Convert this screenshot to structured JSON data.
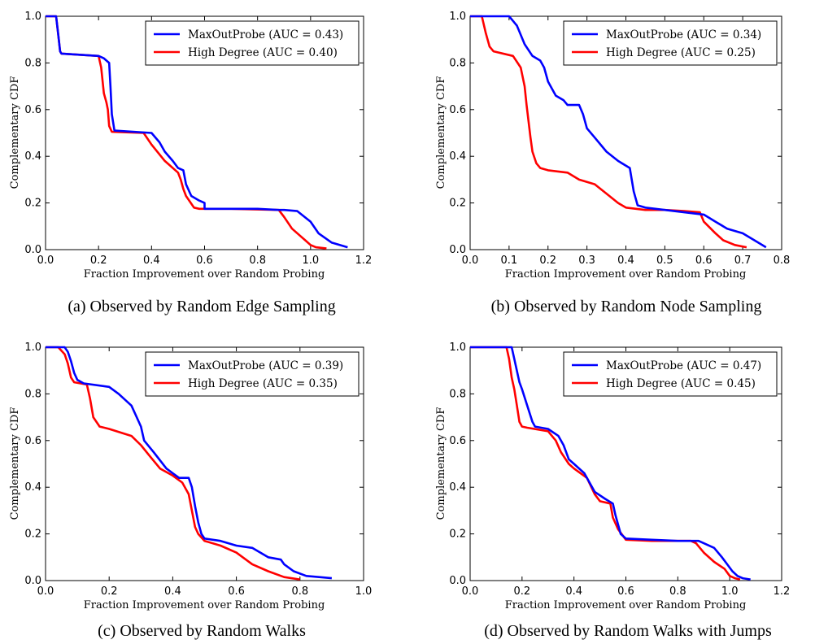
{
  "chart_data": [
    {
      "type": "line",
      "caption": "(a) Observed by Random Edge Sampling",
      "xlabel": "Fraction Improvement over Random Probing",
      "ylabel": "Complementary CDF",
      "xlim": [
        0.0,
        1.2
      ],
      "ylim": [
        0.0,
        1.0
      ],
      "xticks": [
        "0.0",
        "0.2",
        "0.4",
        "0.6",
        "0.8",
        "1.0",
        "1.2"
      ],
      "yticks": [
        "0.0",
        "0.2",
        "0.4",
        "0.6",
        "0.8",
        "1.0"
      ],
      "legend_position": "top-right",
      "grid": false,
      "series": [
        {
          "name": "MaxOutProbe (AUC = 0.43)",
          "color": "#0000ff",
          "x": [
            0.0,
            0.04,
            0.05,
            0.055,
            0.06,
            0.2,
            0.22,
            0.24,
            0.245,
            0.25,
            0.26,
            0.4,
            0.43,
            0.45,
            0.48,
            0.5,
            0.52,
            0.53,
            0.55,
            0.58,
            0.6,
            0.6,
            0.7,
            0.8,
            0.88,
            0.9,
            0.95,
            1.0,
            1.03,
            1.08,
            1.14
          ],
          "y": [
            1.0,
            1.0,
            0.9,
            0.85,
            0.84,
            0.83,
            0.82,
            0.8,
            0.7,
            0.58,
            0.51,
            0.5,
            0.46,
            0.42,
            0.38,
            0.35,
            0.34,
            0.28,
            0.23,
            0.21,
            0.2,
            0.175,
            0.175,
            0.175,
            0.17,
            0.17,
            0.165,
            0.12,
            0.07,
            0.03,
            0.01
          ]
        },
        {
          "name": "High Degree (AUC = 0.40)",
          "color": "#ff0000",
          "x": [
            0.0,
            0.04,
            0.05,
            0.055,
            0.06,
            0.2,
            0.21,
            0.22,
            0.23,
            0.235,
            0.24,
            0.25,
            0.37,
            0.4,
            0.45,
            0.5,
            0.51,
            0.52,
            0.53,
            0.56,
            0.58,
            0.7,
            0.88,
            0.9,
            0.93,
            0.96,
            0.98,
            1.0,
            1.02,
            1.06
          ],
          "y": [
            1.0,
            1.0,
            0.9,
            0.85,
            0.84,
            0.83,
            0.78,
            0.67,
            0.63,
            0.6,
            0.53,
            0.505,
            0.5,
            0.45,
            0.38,
            0.33,
            0.3,
            0.26,
            0.23,
            0.18,
            0.175,
            0.175,
            0.17,
            0.14,
            0.09,
            0.06,
            0.04,
            0.02,
            0.01,
            0.005
          ]
        }
      ]
    },
    {
      "type": "line",
      "caption": "(b) Observed by Random Node Sampling",
      "xlabel": "Fraction Improvement over Random Probing",
      "ylabel": "Complementary CDF",
      "xlim": [
        0.0,
        0.8
      ],
      "ylim": [
        0.0,
        1.0
      ],
      "xticks": [
        "0.0",
        "0.1",
        "0.2",
        "0.3",
        "0.4",
        "0.5",
        "0.6",
        "0.7",
        "0.8"
      ],
      "yticks": [
        "0.0",
        "0.2",
        "0.4",
        "0.6",
        "0.8",
        "1.0"
      ],
      "legend_position": "top-right",
      "grid": false,
      "series": [
        {
          "name": "MaxOutProbe (AUC = 0.34)",
          "color": "#0000ff",
          "x": [
            0.0,
            0.1,
            0.11,
            0.12,
            0.14,
            0.16,
            0.18,
            0.19,
            0.2,
            0.22,
            0.24,
            0.25,
            0.28,
            0.29,
            0.3,
            0.32,
            0.35,
            0.38,
            0.41,
            0.42,
            0.43,
            0.45,
            0.5,
            0.55,
            0.6,
            0.63,
            0.66,
            0.7,
            0.73,
            0.76
          ],
          "y": [
            1.0,
            1.0,
            0.98,
            0.96,
            0.88,
            0.83,
            0.81,
            0.78,
            0.72,
            0.66,
            0.64,
            0.62,
            0.62,
            0.58,
            0.52,
            0.48,
            0.42,
            0.38,
            0.35,
            0.25,
            0.19,
            0.18,
            0.17,
            0.16,
            0.15,
            0.12,
            0.09,
            0.07,
            0.04,
            0.01
          ]
        },
        {
          "name": "High Degree (AUC = 0.25)",
          "color": "#ff0000",
          "x": [
            0.0,
            0.03,
            0.04,
            0.05,
            0.06,
            0.11,
            0.13,
            0.14,
            0.145,
            0.15,
            0.155,
            0.16,
            0.17,
            0.18,
            0.2,
            0.25,
            0.28,
            0.32,
            0.35,
            0.38,
            0.4,
            0.45,
            0.5,
            0.55,
            0.59,
            0.6,
            0.63,
            0.65,
            0.68,
            0.71
          ],
          "y": [
            1.0,
            1.0,
            0.93,
            0.87,
            0.85,
            0.83,
            0.78,
            0.7,
            0.62,
            0.55,
            0.48,
            0.42,
            0.37,
            0.35,
            0.34,
            0.33,
            0.3,
            0.28,
            0.24,
            0.2,
            0.18,
            0.17,
            0.17,
            0.165,
            0.16,
            0.12,
            0.07,
            0.04,
            0.02,
            0.01
          ]
        }
      ]
    },
    {
      "type": "line",
      "caption": "(c) Observed by Random Walks",
      "xlabel": "Fraction Improvement over Random Probing",
      "ylabel": "Complementary CDF",
      "xlim": [
        0.0,
        1.0
      ],
      "ylim": [
        0.0,
        1.0
      ],
      "xticks": [
        "0.0",
        "0.2",
        "0.4",
        "0.6",
        "0.8",
        "1.0"
      ],
      "yticks": [
        "0.0",
        "0.2",
        "0.4",
        "0.6",
        "0.8",
        "1.0"
      ],
      "legend_position": "top-right",
      "grid": false,
      "series": [
        {
          "name": "MaxOutProbe (AUC = 0.39)",
          "color": "#0000ff",
          "x": [
            0.0,
            0.06,
            0.07,
            0.08,
            0.09,
            0.1,
            0.12,
            0.2,
            0.23,
            0.27,
            0.3,
            0.31,
            0.34,
            0.38,
            0.4,
            0.42,
            0.45,
            0.46,
            0.47,
            0.48,
            0.49,
            0.5,
            0.55,
            0.6,
            0.65,
            0.7,
            0.74,
            0.75,
            0.78,
            0.82,
            0.9
          ],
          "y": [
            1.0,
            1.0,
            0.98,
            0.94,
            0.89,
            0.86,
            0.845,
            0.83,
            0.8,
            0.75,
            0.66,
            0.6,
            0.55,
            0.48,
            0.46,
            0.44,
            0.44,
            0.4,
            0.32,
            0.25,
            0.2,
            0.18,
            0.17,
            0.15,
            0.14,
            0.1,
            0.09,
            0.07,
            0.04,
            0.02,
            0.01
          ]
        },
        {
          "name": "High Degree (AUC = 0.35)",
          "color": "#ff0000",
          "x": [
            0.0,
            0.04,
            0.06,
            0.07,
            0.08,
            0.09,
            0.13,
            0.14,
            0.15,
            0.17,
            0.2,
            0.27,
            0.3,
            0.33,
            0.36,
            0.4,
            0.43,
            0.45,
            0.46,
            0.47,
            0.48,
            0.5,
            0.55,
            0.6,
            0.65,
            0.7,
            0.75,
            0.8
          ],
          "y": [
            1.0,
            1.0,
            0.97,
            0.93,
            0.87,
            0.85,
            0.84,
            0.78,
            0.7,
            0.66,
            0.65,
            0.62,
            0.58,
            0.53,
            0.48,
            0.45,
            0.42,
            0.37,
            0.3,
            0.23,
            0.2,
            0.17,
            0.15,
            0.12,
            0.07,
            0.04,
            0.015,
            0.005
          ]
        }
      ]
    },
    {
      "type": "line",
      "caption": "(d) Observed by Random Walks with Jumps",
      "xlabel": "Fraction Improvement over Random Probing",
      "ylabel": "Complementary CDF",
      "xlim": [
        0.0,
        1.2
      ],
      "ylim": [
        0.0,
        1.0
      ],
      "xticks": [
        "0.0",
        "0.2",
        "0.4",
        "0.6",
        "0.8",
        "1.0",
        "1.2"
      ],
      "yticks": [
        "0.0",
        "0.2",
        "0.4",
        "0.6",
        "0.8",
        "1.0"
      ],
      "legend_position": "top-right",
      "grid": false,
      "series": [
        {
          "name": "MaxOutProbe (AUC = 0.47)",
          "color": "#0000ff",
          "x": [
            0.0,
            0.16,
            0.17,
            0.19,
            0.2,
            0.22,
            0.24,
            0.25,
            0.3,
            0.34,
            0.36,
            0.38,
            0.4,
            0.44,
            0.48,
            0.52,
            0.55,
            0.56,
            0.58,
            0.6,
            0.7,
            0.8,
            0.88,
            0.9,
            0.94,
            0.97,
            0.99,
            1.01,
            1.03,
            1.05,
            1.08
          ],
          "y": [
            1.0,
            1.0,
            0.95,
            0.85,
            0.82,
            0.75,
            0.68,
            0.66,
            0.65,
            0.62,
            0.58,
            0.52,
            0.5,
            0.46,
            0.38,
            0.35,
            0.33,
            0.28,
            0.2,
            0.18,
            0.175,
            0.17,
            0.17,
            0.16,
            0.14,
            0.1,
            0.07,
            0.04,
            0.02,
            0.01,
            0.005
          ]
        },
        {
          "name": "High Degree (AUC = 0.45)",
          "color": "#ff0000",
          "x": [
            0.0,
            0.14,
            0.15,
            0.16,
            0.17,
            0.18,
            0.19,
            0.2,
            0.22,
            0.3,
            0.33,
            0.35,
            0.38,
            0.4,
            0.45,
            0.48,
            0.5,
            0.54,
            0.55,
            0.57,
            0.6,
            0.7,
            0.85,
            0.87,
            0.9,
            0.94,
            0.98,
            1.0,
            1.02,
            1.04
          ],
          "y": [
            1.0,
            1.0,
            0.95,
            0.87,
            0.82,
            0.75,
            0.68,
            0.66,
            0.655,
            0.64,
            0.6,
            0.55,
            0.5,
            0.48,
            0.44,
            0.37,
            0.34,
            0.33,
            0.27,
            0.22,
            0.175,
            0.17,
            0.17,
            0.16,
            0.12,
            0.08,
            0.05,
            0.02,
            0.01,
            0.005
          ]
        }
      ]
    }
  ]
}
